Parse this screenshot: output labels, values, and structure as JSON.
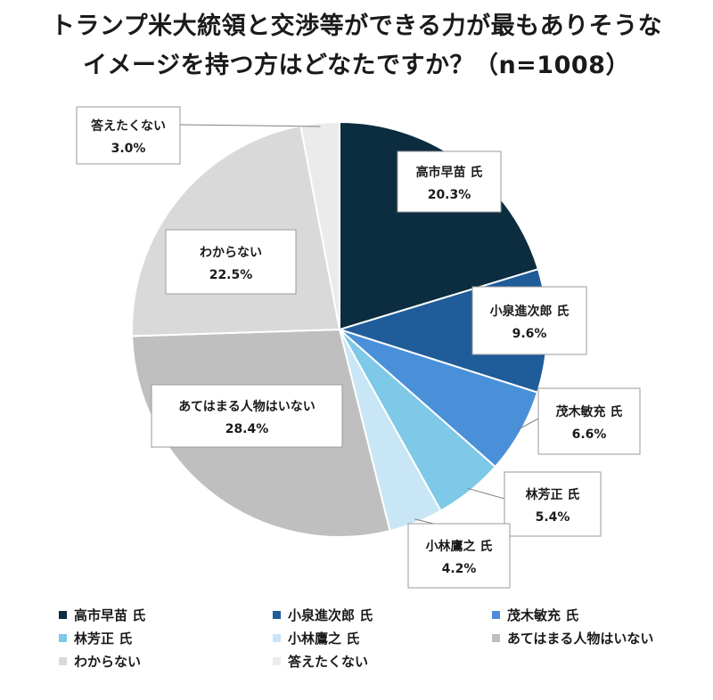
{
  "title": {
    "line1": "トランプ米大統領と交渉等ができる力が最もありそうな",
    "line2": "イメージを持つ方はどなたですか？（n=1008）"
  },
  "chart_data": {
    "type": "pie",
    "categories": [
      "高市早苗 氏",
      "小泉進次郎 氏",
      "茂木敏充 氏",
      "林芳正 氏",
      "小林鷹之 氏",
      "あてはまる人物はいない",
      "わからない",
      "答えたくない"
    ],
    "values": [
      20.3,
      9.6,
      6.6,
      5.4,
      4.2,
      28.4,
      22.5,
      3.0
    ],
    "value_labels": [
      "20.3%",
      "9.6%",
      "6.6%",
      "5.4%",
      "4.2%",
      "28.4%",
      "22.5%",
      "3.0%"
    ],
    "colors": [
      "#0b2d3f",
      "#1f5c99",
      "#4a90d9",
      "#7ec8e8",
      "#c8e6f5",
      "#bfbfbf",
      "#d9d9d9",
      "#ebebeb"
    ],
    "start": "12 o'clock",
    "direction": "clockwise",
    "legend_position": "bottom"
  }
}
